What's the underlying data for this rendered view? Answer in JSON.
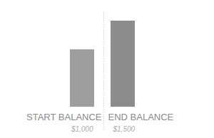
{
  "chart_data": {
    "type": "bar",
    "categories": [
      "START BALANCE",
      "END BALANCE"
    ],
    "values": [
      1000,
      1500
    ],
    "value_labels": [
      "$1,000",
      "$1,500"
    ],
    "data_labels": true,
    "colors": [
      "#9d9d9d",
      "#8c8c8c"
    ],
    "tick_labels": "x",
    "grid": false
  }
}
